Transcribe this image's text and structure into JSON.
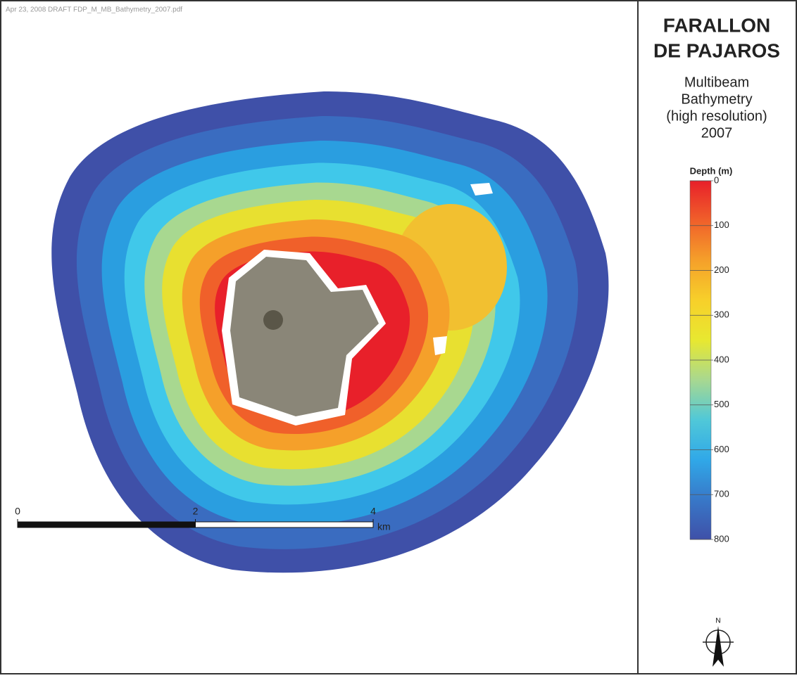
{
  "header": {
    "note": "Apr 23, 2008   DRAFT   FDP_M_MB_Bathymetry_2007.pdf"
  },
  "title": [
    "FARALLON",
    "DE PAJAROS"
  ],
  "subtitle": [
    "Multibeam",
    "Bathymetry",
    "(high resolution)",
    "2007"
  ],
  "legend": {
    "title": "Depth (m)",
    "ylim": [
      0,
      800
    ],
    "ticks": [
      0,
      100,
      200,
      300,
      400,
      500,
      600,
      700,
      800
    ],
    "colors": [
      "#e8202a",
      "#f0602a",
      "#f5a02a",
      "#f7d02a",
      "#e8e830",
      "#a8d890",
      "#50c8d8",
      "#30a8e8",
      "#3878c8",
      "#3f50a8"
    ]
  },
  "scale_bar": {
    "ticks": [
      0,
      2,
      4
    ],
    "unit": "km"
  },
  "north": "N"
}
